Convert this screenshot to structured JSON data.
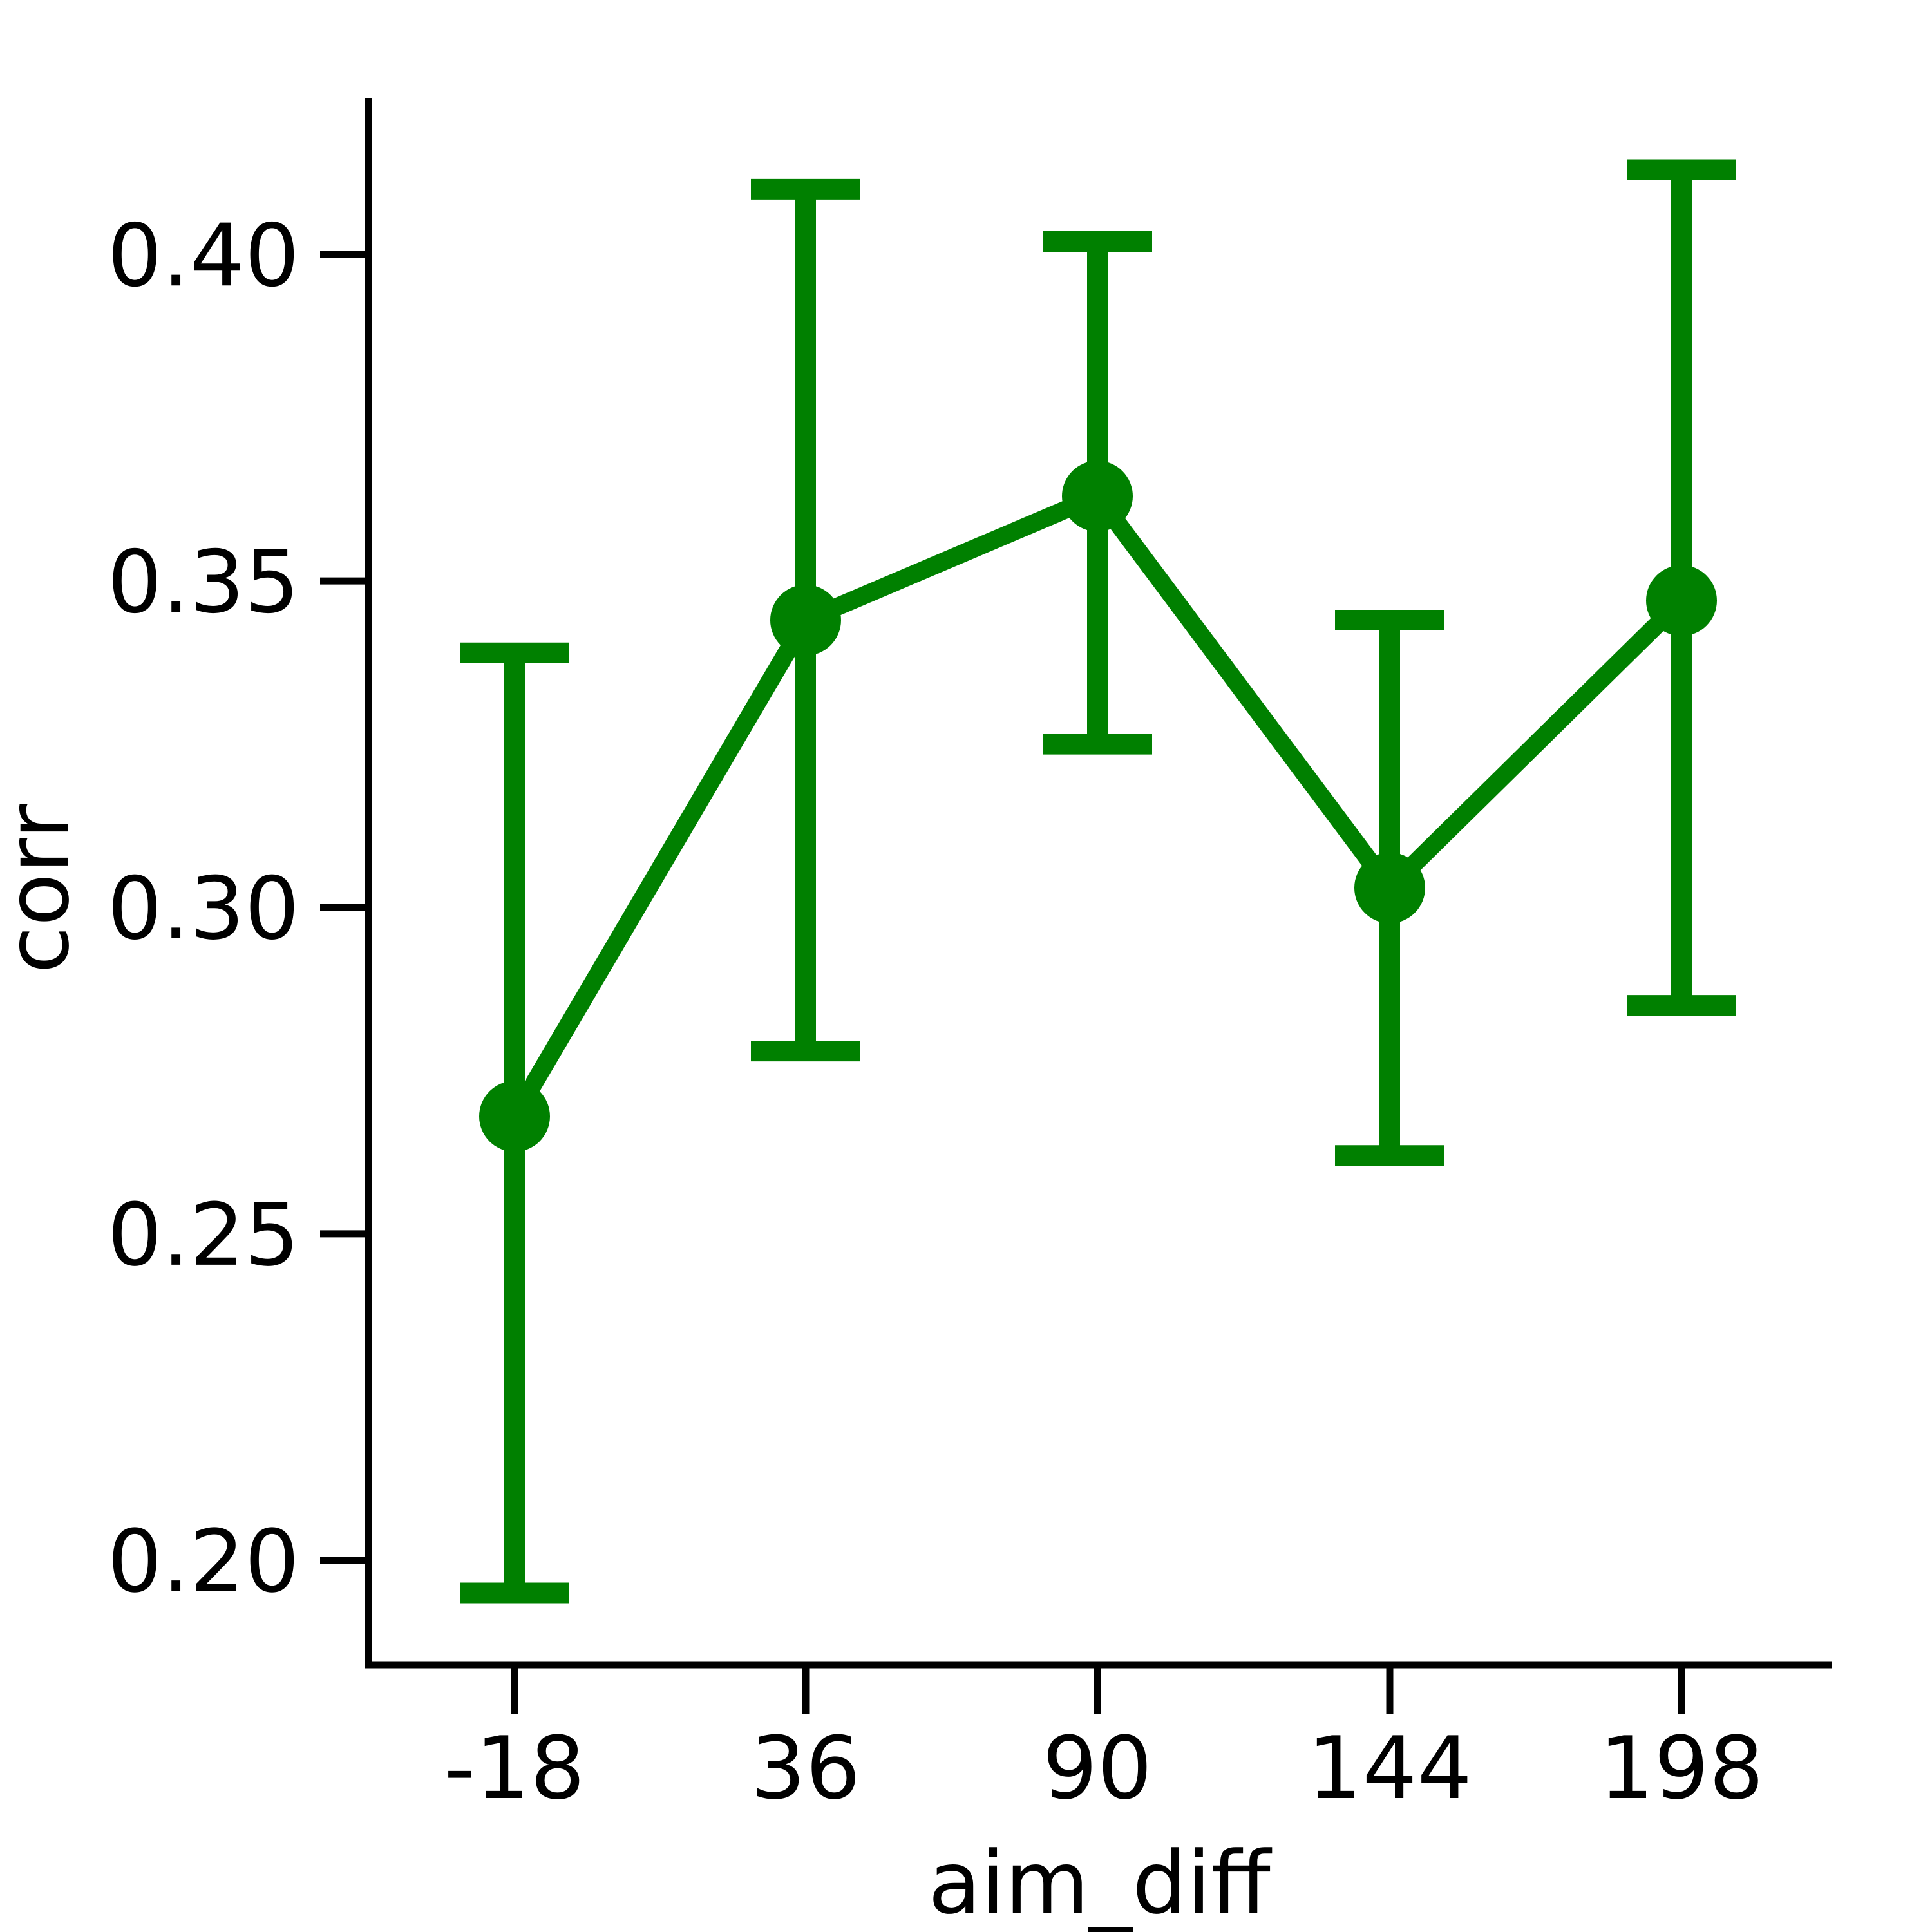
{
  "chart_data": {
    "type": "line",
    "title": "",
    "xlabel": "aim_diff",
    "ylabel": "corr",
    "categories": [
      "-18",
      "36",
      "90",
      "144",
      "198"
    ],
    "series": [
      {
        "values": [
          0.268,
          0.344,
          0.363,
          0.303,
          0.347
        ],
        "error_low": [
          0.195,
          0.278,
          0.325,
          0.262,
          0.285
        ],
        "error_high": [
          0.339,
          0.41,
          0.402,
          0.344,
          0.413
        ]
      }
    ],
    "yticks": [
      "0.20",
      "0.25",
      "0.30",
      "0.35",
      "0.40"
    ],
    "ytick_values": [
      0.2,
      0.25,
      0.3,
      0.35,
      0.4
    ],
    "ylim": [
      0.184,
      0.424
    ],
    "grid": false,
    "legend": "none",
    "color": "#008000",
    "axis_color": "#000000"
  }
}
